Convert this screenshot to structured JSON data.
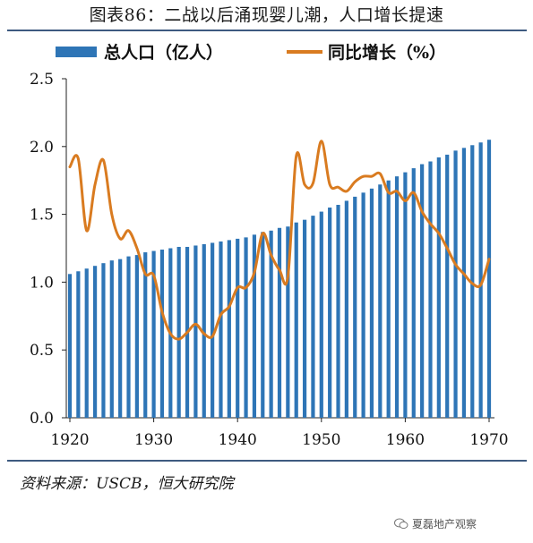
{
  "title": "图表86：二战以后涌现婴儿潮，人口增长提速",
  "source": "资料来源：USCB，恒大研究院",
  "watermark": "夏磊地产观察",
  "colors": {
    "bar": "#2e75b6",
    "line": "#d97b20",
    "rule": "#3d5a80"
  },
  "chart_data": {
    "type": "bar+line",
    "legend": [
      "总人口（亿人）",
      "同比增长（%）"
    ],
    "legend_position": "top",
    "ylim": [
      0,
      2.5
    ],
    "yticks": [
      "0.0",
      "0.5",
      "1.0",
      "1.5",
      "2.0",
      "2.5"
    ],
    "xticks": [
      "1920",
      "1930",
      "1940",
      "1950",
      "1960",
      "1970"
    ],
    "x": [
      1920,
      1921,
      1922,
      1923,
      1924,
      1925,
      1926,
      1927,
      1928,
      1929,
      1930,
      1931,
      1932,
      1933,
      1934,
      1935,
      1936,
      1937,
      1938,
      1939,
      1940,
      1941,
      1942,
      1943,
      1944,
      1945,
      1946,
      1947,
      1948,
      1949,
      1950,
      1951,
      1952,
      1953,
      1954,
      1955,
      1956,
      1957,
      1958,
      1959,
      1960,
      1961,
      1962,
      1963,
      1964,
      1965,
      1966,
      1967,
      1968,
      1969,
      1970
    ],
    "series": [
      {
        "name": "总人口（亿人）",
        "kind": "bar",
        "values": [
          1.06,
          1.08,
          1.1,
          1.12,
          1.14,
          1.16,
          1.17,
          1.19,
          1.2,
          1.22,
          1.23,
          1.24,
          1.25,
          1.26,
          1.26,
          1.27,
          1.28,
          1.29,
          1.3,
          1.31,
          1.32,
          1.33,
          1.35,
          1.37,
          1.38,
          1.4,
          1.41,
          1.44,
          1.46,
          1.49,
          1.52,
          1.55,
          1.57,
          1.6,
          1.63,
          1.66,
          1.69,
          1.72,
          1.75,
          1.78,
          1.81,
          1.84,
          1.87,
          1.89,
          1.92,
          1.94,
          1.97,
          1.99,
          2.01,
          2.03,
          2.05
        ]
      },
      {
        "name": "同比增长（%）",
        "kind": "line",
        "values": [
          1.85,
          1.91,
          1.38,
          1.72,
          1.9,
          1.5,
          1.32,
          1.38,
          1.25,
          1.06,
          1.05,
          0.78,
          0.62,
          0.58,
          0.63,
          0.69,
          0.62,
          0.6,
          0.76,
          0.82,
          0.96,
          0.96,
          1.07,
          1.36,
          1.2,
          1.09,
          1.04,
          1.93,
          1.72,
          1.73,
          2.04,
          1.72,
          1.7,
          1.67,
          1.74,
          1.78,
          1.78,
          1.8,
          1.66,
          1.67,
          1.6,
          1.66,
          1.52,
          1.43,
          1.36,
          1.25,
          1.13,
          1.06,
          0.99,
          0.98,
          1.17
        ]
      }
    ]
  }
}
